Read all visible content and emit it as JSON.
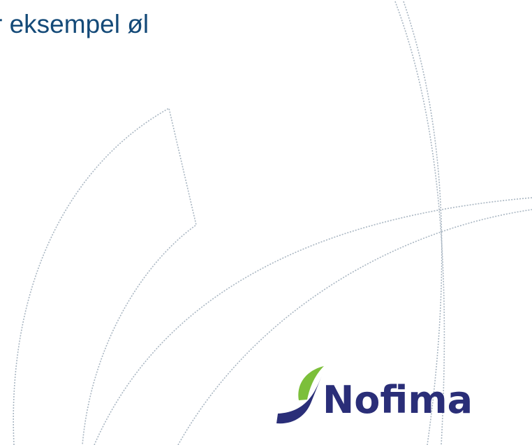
{
  "slide": {
    "title": "r eksempel øl",
    "logo_text": "Nofima"
  }
}
